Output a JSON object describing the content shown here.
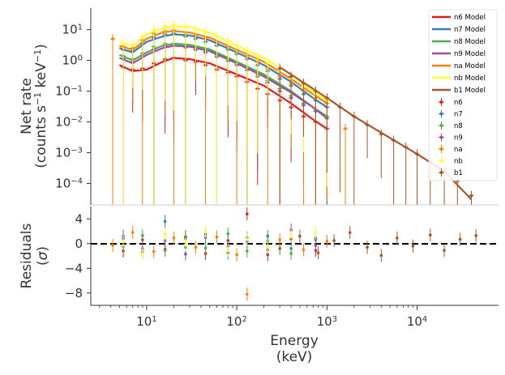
{
  "chart_data": [
    {
      "panel": "top",
      "type": "scatter",
      "ylabel_line1": "Net rate",
      "ylabel_line2_parts": [
        "(counts s",
        "−1",
        " keV",
        "−1",
        ")"
      ],
      "x_scale": "log",
      "y_scale": "log",
      "xlim": [
        2.4,
        80000
      ],
      "ylim": [
        2e-05,
        50
      ],
      "y_ticks": [
        {
          "value": 10,
          "base": "10",
          "exp": "1"
        },
        {
          "value": 1,
          "base": "10",
          "exp": "0"
        },
        {
          "value": 0.1,
          "base": "10",
          "exp": "−1"
        },
        {
          "value": 0.01,
          "base": "10",
          "exp": "−2"
        },
        {
          "value": 0.001,
          "base": "10",
          "exp": "−3"
        },
        {
          "value": 0.0001,
          "base": "10",
          "exp": "−4"
        }
      ],
      "legend_position": "top-right",
      "legend_models": [
        {
          "label": "n6 Model",
          "color": "#e41a1c"
        },
        {
          "label": "n7 Model",
          "color": "#377eb8"
        },
        {
          "label": "n8 Model",
          "color": "#4daf4a"
        },
        {
          "label": "n9 Model",
          "color": "#984ea3"
        },
        {
          "label": "na Model",
          "color": "#ff7f00"
        },
        {
          "label": "nb Model",
          "color": "#ffff33"
        },
        {
          "label": "b1 Model",
          "color": "#a65628"
        }
      ],
      "legend_data": [
        {
          "label": "n6",
          "color": "#e41a1c"
        },
        {
          "label": "n7",
          "color": "#377eb8"
        },
        {
          "label": "n8",
          "color": "#4daf4a"
        },
        {
          "label": "n9",
          "color": "#984ea3"
        },
        {
          "label": "na",
          "color": "#ff7f00"
        },
        {
          "label": "nb",
          "color": "#ffff33"
        },
        {
          "label": "b1",
          "color": "#a65628"
        }
      ],
      "models": [
        {
          "name": "n6 Model",
          "color": "#e41a1c",
          "x": [
            5,
            7,
            10,
            15,
            20,
            30,
            50,
            100,
            200,
            400,
            700,
            1000
          ],
          "y": [
            0.7,
            0.45,
            0.5,
            0.9,
            1.2,
            1.1,
            0.8,
            0.35,
            0.15,
            0.04,
            0.012,
            0.006
          ]
        },
        {
          "name": "n7 Model",
          "color": "#377eb8",
          "x": [
            5,
            7,
            10,
            15,
            20,
            30,
            50,
            100,
            200,
            400,
            700,
            1000
          ],
          "y": [
            2.5,
            1.8,
            4,
            6,
            7,
            6.5,
            4.5,
            1.8,
            0.7,
            0.2,
            0.06,
            0.03
          ]
        },
        {
          "name": "n8 Model",
          "color": "#4daf4a",
          "x": [
            5,
            7,
            10,
            15,
            20,
            30,
            50,
            100,
            200,
            400,
            700,
            1000
          ],
          "y": [
            1.5,
            1.0,
            1.8,
            3.0,
            3.5,
            3.2,
            2.3,
            0.9,
            0.35,
            0.1,
            0.03,
            0.015
          ]
        },
        {
          "name": "n9 Model",
          "color": "#984ea3",
          "x": [
            5,
            7,
            10,
            15,
            20,
            30,
            50,
            100,
            200,
            400,
            700,
            1000
          ],
          "y": [
            1.2,
            0.8,
            1.5,
            2.5,
            3.0,
            2.8,
            2.0,
            0.8,
            0.3,
            0.09,
            0.03,
            0.013
          ]
        },
        {
          "name": "na Model",
          "color": "#ff7f00",
          "x": [
            5,
            7,
            10,
            15,
            20,
            30,
            50,
            100,
            200,
            400,
            700,
            1000
          ],
          "y": [
            3.0,
            2.2,
            5,
            8,
            9,
            8,
            5.5,
            2.2,
            0.9,
            0.25,
            0.08,
            0.04
          ]
        },
        {
          "name": "nb Model",
          "color": "#ffff33",
          "x": [
            5,
            7,
            10,
            15,
            20,
            30,
            50,
            100,
            200,
            400,
            700,
            1000
          ],
          "y": [
            4.0,
            3.0,
            7,
            11,
            13,
            12,
            8,
            3.0,
            1.2,
            0.35,
            0.1,
            0.05
          ]
        },
        {
          "name": "b1 Model",
          "color": "#a65628",
          "x": [
            300,
            700,
            1000,
            2000,
            5000,
            10000,
            20000,
            40000
          ],
          "y": [
            0.6,
            0.12,
            0.06,
            0.015,
            0.003,
            0.0009,
            0.00025,
            3e-05
          ]
        }
      ],
      "data_series": [
        {
          "name": "n6",
          "color": "#e41a1c",
          "x": [
            5.5,
            7,
            9,
            12,
            16,
            20,
            27,
            35,
            45,
            60,
            80,
            100,
            130,
            170,
            220,
            300,
            400,
            550,
            750,
            1000
          ],
          "y": [
            0.6,
            0.5,
            0.55,
            0.8,
            1.1,
            1.2,
            1.0,
            0.9,
            0.7,
            0.5,
            0.4,
            0.3,
            0.2,
            0.12,
            0.08,
            0.05,
            0.03,
            0.015,
            0.01,
            0.006
          ]
        },
        {
          "name": "n7",
          "color": "#377eb8",
          "x": [
            5.5,
            7,
            9,
            12,
            16,
            20,
            27,
            35,
            45,
            60,
            80,
            100,
            130,
            170,
            220,
            300,
            400,
            550,
            750,
            1000
          ],
          "y": [
            2.2,
            2.0,
            3.5,
            5.5,
            7,
            7.5,
            6,
            5,
            4,
            3,
            2.2,
            1.6,
            1.1,
            0.7,
            0.45,
            0.25,
            0.15,
            0.08,
            0.05,
            0.03
          ]
        },
        {
          "name": "n8",
          "color": "#4daf4a",
          "x": [
            5.5,
            7,
            9,
            12,
            16,
            20,
            27,
            35,
            45,
            60,
            80,
            100,
            130,
            170,
            220,
            300,
            400,
            550,
            750,
            1000
          ],
          "y": [
            1.4,
            1.1,
            1.7,
            2.8,
            3.5,
            3.4,
            3.0,
            2.5,
            2.0,
            1.5,
            1.1,
            0.8,
            0.55,
            0.35,
            0.22,
            0.12,
            0.07,
            0.04,
            0.025,
            0.015
          ]
        },
        {
          "name": "n9",
          "color": "#984ea3",
          "x": [
            5.5,
            7,
            9,
            12,
            16,
            20,
            27,
            35,
            45,
            60,
            80,
            100,
            130,
            170,
            220,
            300,
            400,
            550,
            750,
            1000
          ],
          "y": [
            1.1,
            0.9,
            1.4,
            2.3,
            3.0,
            3.0,
            2.6,
            2.2,
            1.8,
            1.3,
            0.95,
            0.7,
            0.48,
            0.3,
            0.19,
            0.1,
            0.06,
            0.035,
            0.022,
            0.013
          ]
        },
        {
          "name": "na",
          "color": "#ff7f00",
          "x": [
            4.2,
            5.5,
            7,
            9,
            12,
            16,
            20,
            27,
            35,
            45,
            60,
            80,
            100,
            130,
            170,
            220,
            300,
            400,
            550,
            750,
            1000,
            1600
          ],
          "y": [
            5,
            2.8,
            2.5,
            4.5,
            7.5,
            9,
            9.5,
            8,
            6.5,
            5.2,
            4,
            2.8,
            2.0,
            1.4,
            0.9,
            0.55,
            0.3,
            0.18,
            0.1,
            0.06,
            0.04,
            0.006
          ]
        },
        {
          "name": "nb",
          "color": "#ffff33",
          "x": [
            5.5,
            7,
            9,
            12,
            16,
            20,
            27,
            35,
            45,
            60,
            80,
            100,
            130,
            170,
            220,
            300,
            400,
            550,
            750,
            1000
          ],
          "y": [
            3.5,
            3.2,
            6,
            10,
            13,
            14,
            12,
            10,
            8,
            6,
            4.2,
            3.0,
            2.0,
            1.3,
            0.85,
            0.45,
            0.25,
            0.14,
            0.08,
            0.05
          ]
        },
        {
          "name": "b1",
          "color": "#a65628",
          "x": [
            300,
            400,
            550,
            750,
            1000,
            1400,
            2000,
            2800,
            4000,
            5500,
            7500,
            10000,
            14000,
            20000,
            28000,
            40000
          ],
          "y": [
            0.55,
            0.3,
            0.18,
            0.1,
            0.06,
            0.03,
            0.015,
            0.008,
            0.004,
            0.0025,
            0.0015,
            0.0009,
            0.0005,
            0.00025,
            0.00012,
            4e-05
          ]
        }
      ]
    },
    {
      "panel": "bottom",
      "type": "scatter",
      "xlabel_line1": "Energy",
      "xlabel_line2": "(keV)",
      "ylabel_line1": "Residuals",
      "ylabel_line2_parts": [
        "(",
        "σ",
        ")"
      ],
      "x_scale": "log",
      "xlim": [
        2.4,
        80000
      ],
      "ylim": [
        -10,
        6
      ],
      "y_ticks": [
        {
          "value": 4,
          "label": "4"
        },
        {
          "value": 0,
          "label": "0"
        },
        {
          "value": -4,
          "label": "−4"
        },
        {
          "value": -8,
          "label": "−8"
        }
      ],
      "x_ticks": [
        {
          "value": 10,
          "base": "10",
          "exp": "1"
        },
        {
          "value": 100,
          "base": "10",
          "exp": "2"
        },
        {
          "value": 1000,
          "base": "10",
          "exp": "3"
        },
        {
          "value": 10000,
          "base": "10",
          "exp": "4"
        }
      ],
      "zero_line": {
        "value": 0,
        "style": "dashed",
        "color": "#000000"
      },
      "residual_series": [
        {
          "name": "n6",
          "color": "#e41a1c",
          "x": [
            5.5,
            9,
            16,
            27,
            45,
            80,
            130,
            220,
            400,
            750
          ],
          "y": [
            -1.2,
            0.6,
            -0.9,
            1.1,
            -1.6,
            0.5,
            4.8,
            -1.8,
            0.7,
            -1.1
          ]
        },
        {
          "name": "n7",
          "color": "#377eb8",
          "x": [
            5.5,
            9,
            16,
            27,
            45,
            80,
            130,
            220,
            400,
            750
          ],
          "y": [
            0.8,
            -1.4,
            3.6,
            -0.6,
            1.0,
            -1.5,
            0.3,
            1.2,
            -0.8,
            0.9
          ]
        },
        {
          "name": "n8",
          "color": "#4daf4a",
          "x": [
            5.5,
            9,
            16,
            27,
            45,
            80,
            130,
            220,
            400,
            750
          ],
          "y": [
            -0.5,
            1.3,
            -1.1,
            0.8,
            -0.7,
            1.6,
            -1.2,
            0.4,
            -1.6,
            0.6
          ]
        },
        {
          "name": "n9",
          "color": "#984ea3",
          "x": [
            5.5,
            9,
            16,
            27,
            45,
            80,
            130,
            220,
            400,
            750
          ],
          "y": [
            1.2,
            -0.8,
            0.5,
            -1.7,
            1.5,
            -0.4,
            0.9,
            -1.0,
            2.2,
            -0.3
          ]
        },
        {
          "name": "na",
          "color": "#ff7f00",
          "x": [
            4.2,
            7,
            12,
            20,
            35,
            60,
            100,
            130,
            300,
            550,
            1000
          ],
          "y": [
            -0.3,
            1.8,
            -1.3,
            0.9,
            -0.6,
            1.1,
            -1.8,
            -8.2,
            0.6,
            -1.0,
            0.4
          ]
        },
        {
          "name": "nb",
          "color": "#ffff33",
          "x": [
            5.5,
            9,
            16,
            27,
            45,
            80,
            130,
            220,
            400,
            750
          ],
          "y": [
            0.4,
            -1.6,
            1.5,
            -0.2,
            2.0,
            -1.1,
            0.7,
            -0.5,
            1.3,
            1.8
          ]
        },
        {
          "name": "b1",
          "color": "#a65628",
          "x": [
            300,
            500,
            800,
            1200,
            1800,
            2800,
            4000,
            6000,
            9000,
            14000,
            20000,
            30000,
            45000
          ],
          "y": [
            -0.8,
            1.2,
            -1.5,
            0.5,
            1.8,
            -0.6,
            -1.9,
            0.9,
            -0.4,
            1.4,
            -1.1,
            0.7,
            1.3
          ]
        }
      ]
    }
  ]
}
